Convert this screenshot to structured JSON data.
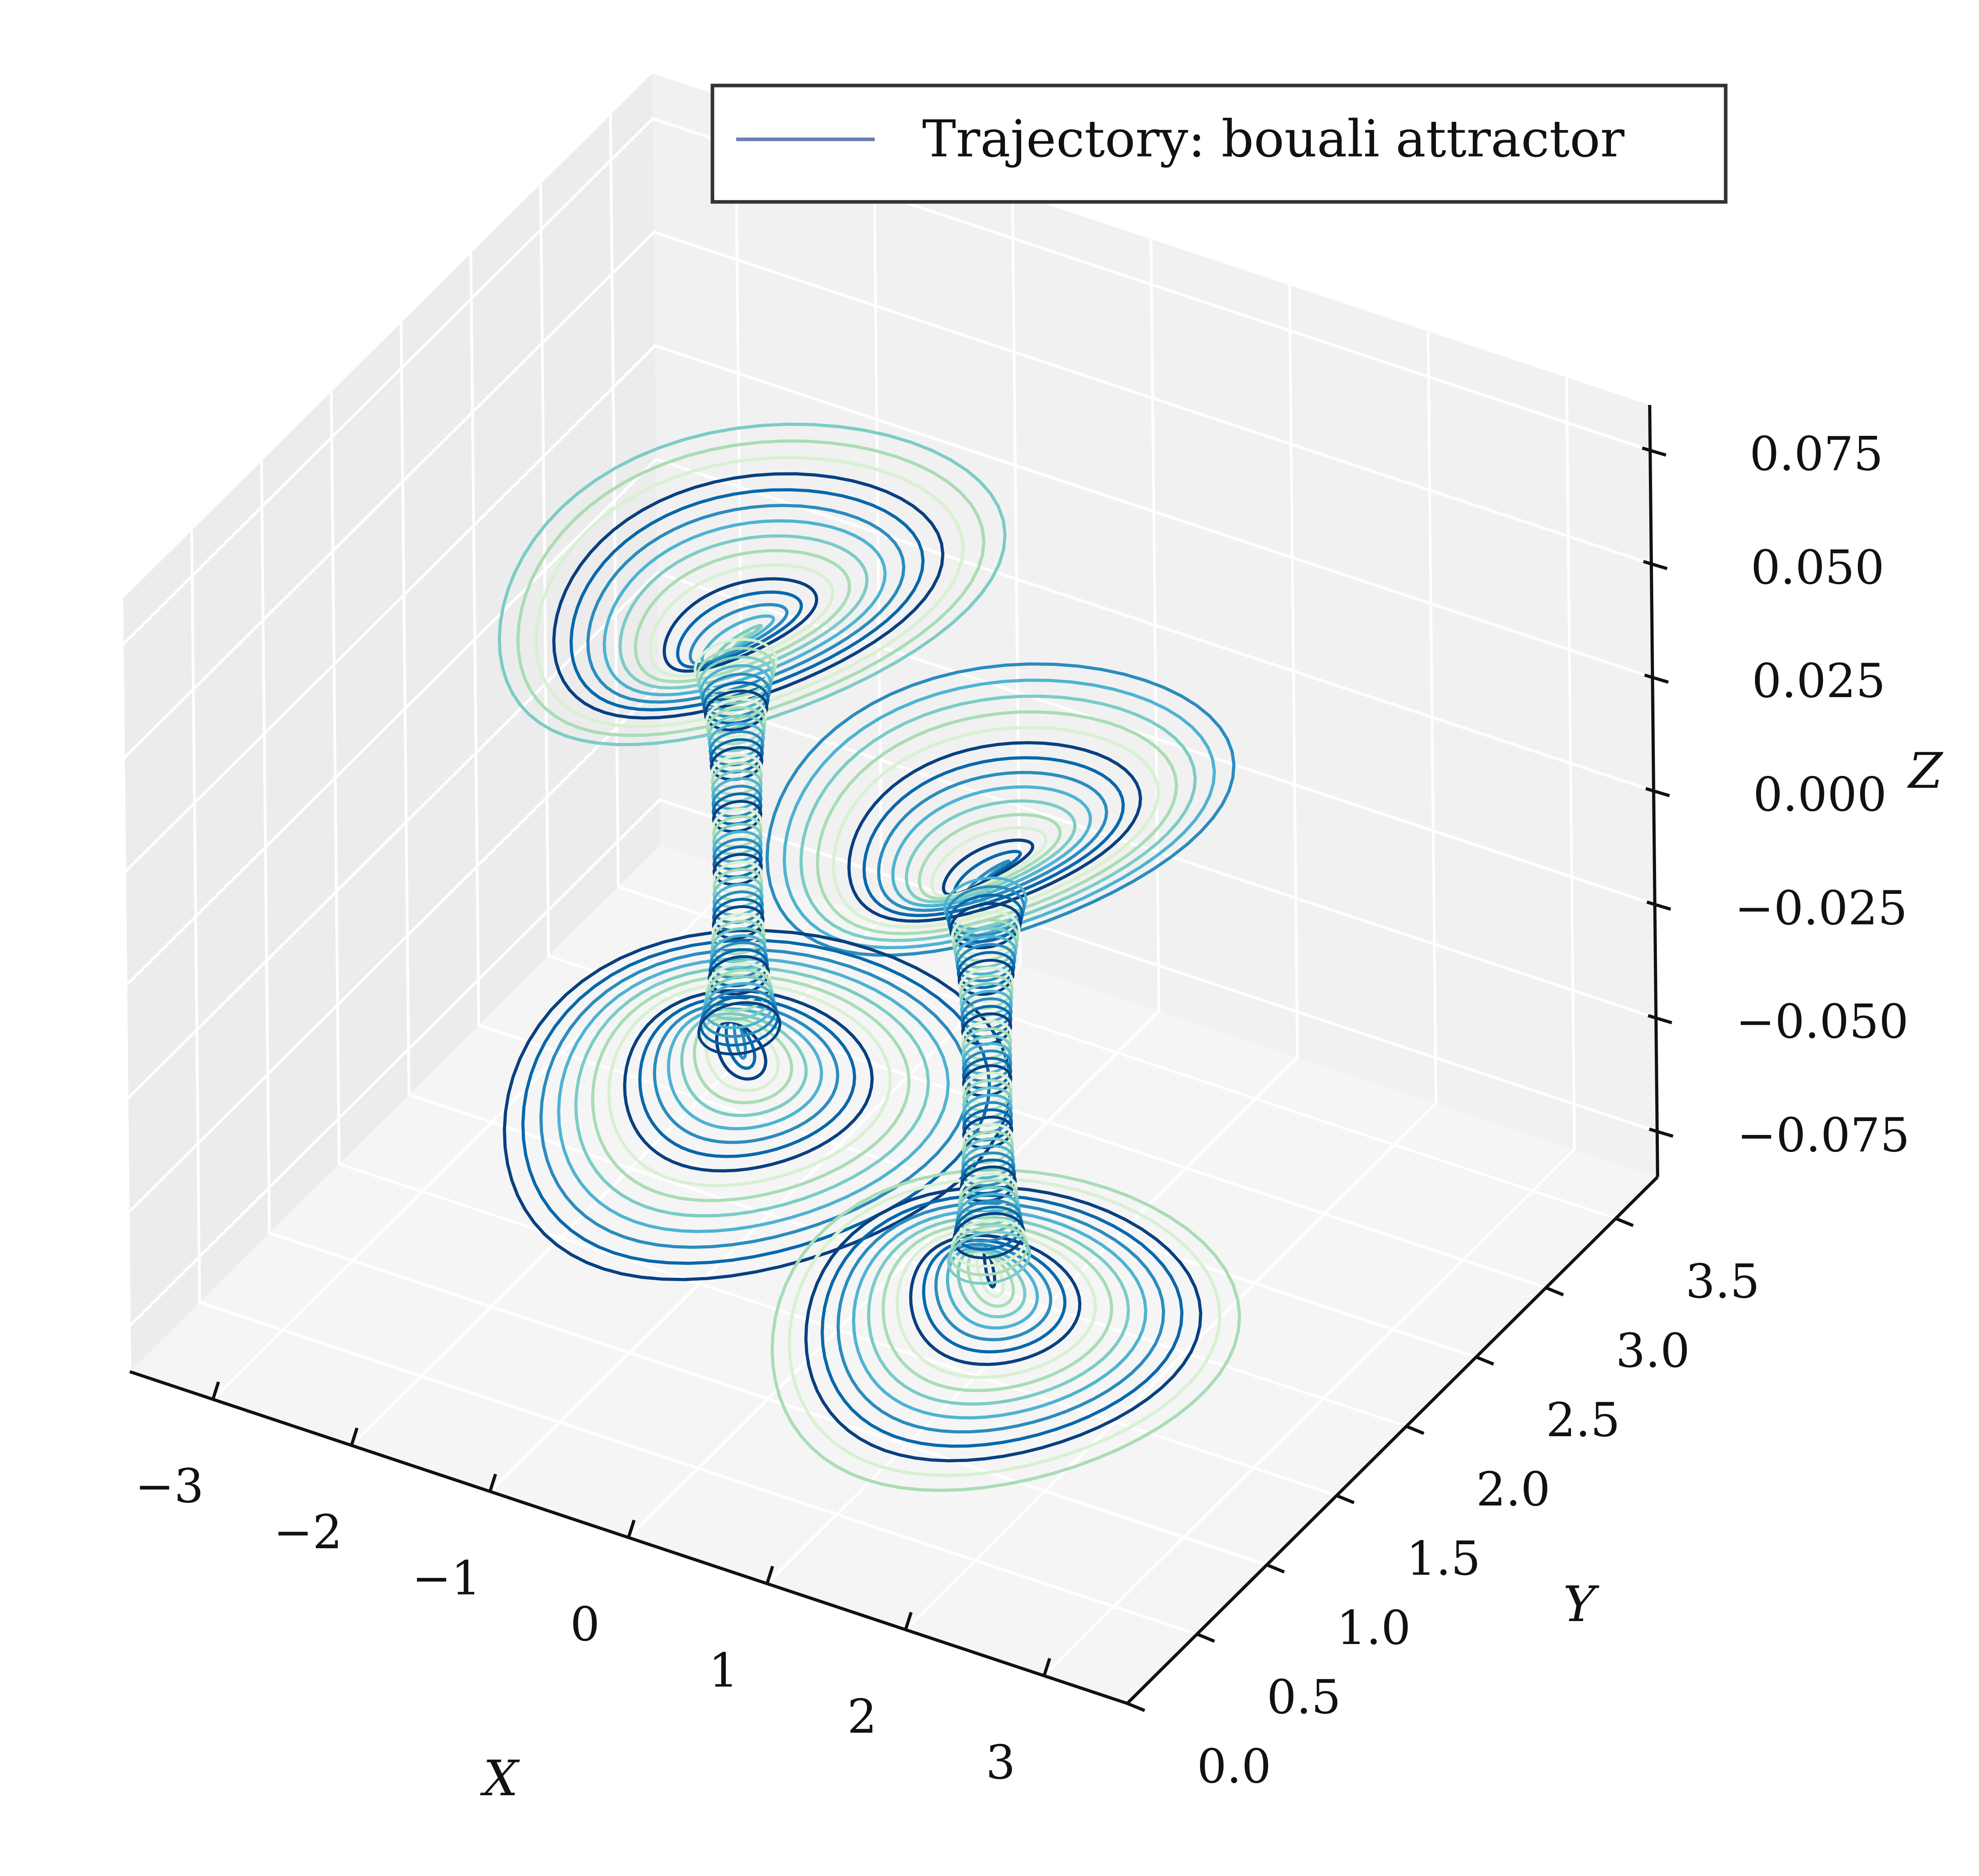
{
  "chart_data": {
    "type": "line",
    "projection": "3d",
    "legend": {
      "label": "Trajectory: bouali attractor",
      "placement": "top-right",
      "line_color": "#6a7fae"
    },
    "axes": {
      "x": {
        "label": "X",
        "range": [
          -3.6,
          3.6
        ],
        "ticks": [
          -3,
          -2,
          -1,
          0,
          1,
          2,
          3
        ],
        "tick_labels": [
          "−3",
          "−2",
          "−1",
          "0",
          "1",
          "2",
          "3"
        ]
      },
      "y": {
        "label": "Y",
        "range": [
          0.0,
          3.8
        ],
        "ticks": [
          0.0,
          0.5,
          1.0,
          1.5,
          2.0,
          2.5,
          3.0,
          3.5
        ],
        "tick_labels": [
          "0.0",
          "0.5",
          "1.0",
          "1.5",
          "2.0",
          "2.5",
          "3.0",
          "3.5"
        ]
      },
      "z": {
        "label": "Z",
        "range": [
          -0.085,
          0.085
        ],
        "ticks": [
          -0.075,
          -0.05,
          -0.025,
          0.0,
          0.025,
          0.05,
          0.075
        ],
        "tick_labels": [
          "−0.075",
          "−0.050",
          "−0.025",
          "0.000",
          "0.025",
          "0.050",
          "0.075"
        ]
      }
    },
    "grid": true,
    "colormap": [
      "#d9f0d3",
      "#a8ddb5",
      "#7bccc4",
      "#4eb3d3",
      "#2b8cbe",
      "#0868ac",
      "#084081"
    ],
    "series": [
      {
        "lobe": "upper-left",
        "center": [
          -1.1,
          1.9,
          0.055
        ],
        "radius_x": 1.45,
        "radius_y": 1.1,
        "neck_z": 0.038
      },
      {
        "lobe": "upper-right",
        "center": [
          1.1,
          1.5,
          0.04
        ],
        "radius_x": 1.35,
        "radius_y": 1.0,
        "neck_z": 0.02
      },
      {
        "lobe": "lower-left",
        "center": [
          -1.1,
          1.9,
          -0.06
        ],
        "radius_x": 1.45,
        "radius_y": 1.1,
        "neck_z": -0.042
      },
      {
        "lobe": "lower-right",
        "center": [
          1.1,
          1.5,
          -0.075
        ],
        "radius_x": 1.35,
        "radius_y": 1.0,
        "neck_z": -0.058
      }
    ]
  }
}
